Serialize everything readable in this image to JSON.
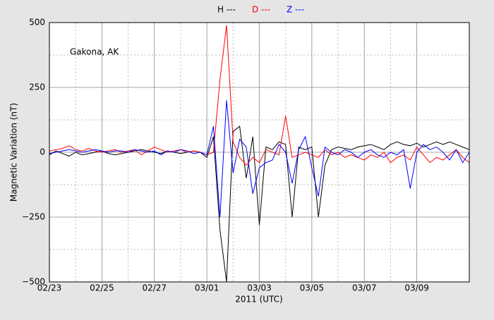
{
  "chart_data": {
    "type": "line",
    "annotation": "Gakona, AK",
    "xlabel": "2011 (UTC)",
    "ylabel": "Magnetic Variation (nT)",
    "x": [
      0,
      0.25,
      0.5,
      0.75,
      1,
      1.25,
      1.5,
      1.75,
      2,
      2.25,
      2.5,
      2.75,
      3,
      3.25,
      3.5,
      3.75,
      4,
      4.25,
      4.5,
      4.75,
      5,
      5.25,
      5.5,
      5.75,
      6,
      6.25,
      6.5,
      6.75,
      7,
      7.25,
      7.5,
      7.75,
      8,
      8.25,
      8.5,
      8.75,
      9,
      9.25,
      9.5,
      9.75,
      10,
      10.25,
      10.5,
      10.75,
      11,
      11.25,
      11.5,
      11.75,
      12,
      12.25,
      12.5,
      12.75,
      13,
      13.25,
      13.5,
      13.75,
      14,
      14.25,
      14.5,
      14.75,
      15,
      15.25,
      15.5,
      15.75,
      16
    ],
    "series": [
      {
        "name": "H ---",
        "color": "#000000",
        "values": [
          -10,
          5,
          -5,
          -15,
          0,
          -10,
          -5,
          0,
          5,
          -5,
          -10,
          -5,
          0,
          5,
          10,
          5,
          0,
          -5,
          5,
          0,
          -5,
          0,
          5,
          0,
          -20,
          60,
          -300,
          -500,
          80,
          100,
          -100,
          60,
          -280,
          20,
          10,
          40,
          30,
          -250,
          20,
          10,
          20,
          -250,
          -50,
          10,
          20,
          15,
          10,
          20,
          25,
          30,
          20,
          10,
          30,
          40,
          30,
          25,
          35,
          20,
          30,
          40,
          30,
          40,
          30,
          20,
          10
        ]
      },
      {
        "name": "D ---",
        "color": "#ff0000",
        "values": [
          5,
          10,
          15,
          25,
          10,
          5,
          15,
          5,
          0,
          5,
          10,
          0,
          5,
          10,
          -10,
          5,
          20,
          10,
          0,
          5,
          10,
          0,
          5,
          0,
          -10,
          0,
          280,
          490,
          40,
          -20,
          -50,
          -20,
          -40,
          10,
          0,
          -10,
          140,
          -20,
          -10,
          0,
          -10,
          -20,
          10,
          -10,
          0,
          -20,
          -10,
          -20,
          -30,
          -10,
          -20,
          0,
          -40,
          -20,
          -10,
          -30,
          20,
          -10,
          -40,
          -20,
          -30,
          -10,
          10,
          -20,
          -40
        ]
      },
      {
        "name": "Z ---",
        "color": "#0000ff",
        "values": [
          -5,
          0,
          5,
          10,
          5,
          0,
          5,
          10,
          5,
          0,
          5,
          5,
          0,
          10,
          5,
          0,
          5,
          -10,
          5,
          0,
          10,
          5,
          -5,
          0,
          -10,
          100,
          -250,
          200,
          -80,
          50,
          20,
          -160,
          -60,
          -40,
          -30,
          30,
          0,
          -120,
          10,
          60,
          -60,
          -170,
          20,
          0,
          -10,
          10,
          0,
          -20,
          0,
          10,
          -10,
          -20,
          0,
          -10,
          10,
          -140,
          0,
          30,
          10,
          20,
          0,
          -30,
          10,
          -40,
          0
        ]
      }
    ],
    "xlim": [
      0,
      16
    ],
    "xticks": [
      {
        "value": 0,
        "label": "02/23"
      },
      {
        "value": 2,
        "label": "02/25"
      },
      {
        "value": 4,
        "label": "02/27"
      },
      {
        "value": 6,
        "label": "03/01"
      },
      {
        "value": 8,
        "label": "03/03"
      },
      {
        "value": 10,
        "label": "03/05"
      },
      {
        "value": 12,
        "label": "03/07"
      },
      {
        "value": 14,
        "label": "03/09"
      }
    ],
    "xminorticks": [
      1,
      3,
      5,
      7,
      9,
      11,
      13
    ],
    "ylim": [
      -500,
      500
    ],
    "yticks": [
      {
        "value": -500,
        "label": "−500"
      },
      {
        "value": -250,
        "label": "−250"
      },
      0,
      250,
      500
    ],
    "yminorticks": [
      -375,
      -125,
      125,
      375
    ],
    "grid": true
  }
}
